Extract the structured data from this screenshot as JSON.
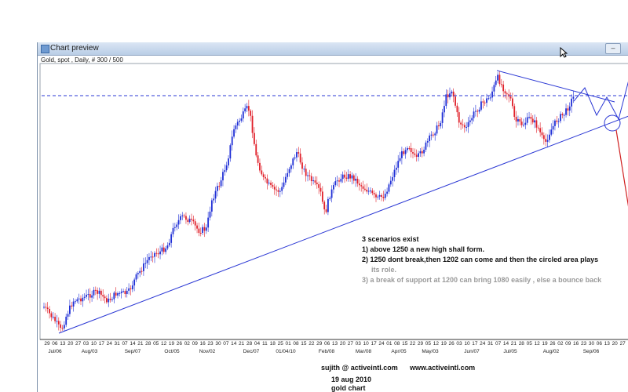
{
  "window": {
    "title": "Chart preview",
    "minimize_glyph": "–"
  },
  "chart_header": "Gold, spot , Daily, # 300 / 500",
  "chart_data": {
    "type": "candlestick",
    "x_day_labels": [
      "29",
      "06",
      "13",
      "20",
      "27",
      "03",
      "10",
      "17",
      "24",
      "31",
      "07",
      "14",
      "21",
      "28",
      "05",
      "12",
      "19",
      "26",
      "02",
      "09",
      "16",
      "23",
      "30",
      "07",
      "14",
      "21",
      "28",
      "04",
      "11",
      "18",
      "25",
      "01",
      "08",
      "15",
      "22",
      "29",
      "06",
      "13",
      "20",
      "27",
      "03",
      "10",
      "17",
      "24",
      "01",
      "08",
      "15",
      "22",
      "29",
      "05",
      "12",
      "19",
      "26",
      "03",
      "10",
      "17",
      "24",
      "31",
      "07",
      "14",
      "21",
      "28",
      "05",
      "12",
      "19",
      "26",
      "02",
      "09",
      "16",
      "23",
      "30",
      "06",
      "13",
      "20",
      "27"
    ],
    "x_month_labels": [
      "Jul/06",
      "Aug/03",
      "Sep/07",
      "Oct/05",
      "Nov/02",
      "Dec/07",
      "01/04/10",
      "Feb/08",
      "Mar/08",
      "Apr/05",
      "May/03",
      "Jun/07",
      "Jul/05",
      "Aug/02",
      "Sep/06"
    ],
    "resistance_level": 1250,
    "support_level": 1200
  },
  "annotations": {
    "line0": "3 scenarios exist",
    "line1": "1) above 1250 a new high shall form.",
    "line2": "2) 1250 dont break,then 1202 can come and then the circled area plays",
    "line2b": "its role.",
    "line3": "3) a break of support at 1200 can bring 1080 easily , else a bounce back"
  },
  "credits": {
    "author": "sujith @ activeintl.com",
    "site": "www.activeintl.com",
    "date": "19 aug 2010",
    "caption": "gold chart"
  },
  "colors": {
    "up": "#1f2fd6",
    "down": "#e0202a",
    "trend": "#2a37d4",
    "projection_down": "#d02020"
  }
}
